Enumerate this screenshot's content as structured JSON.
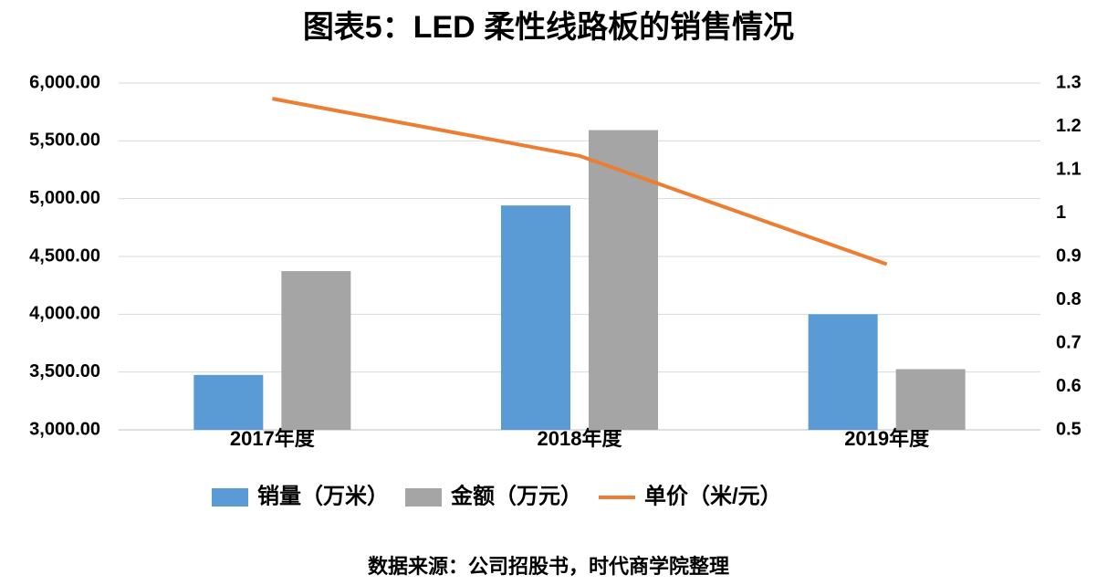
{
  "chart_data": {
    "type": "bar-line",
    "title": "图表5：LED 柔性线路板的销售情况",
    "source": "数据来源：公司招股书，时代商学院整理",
    "categories": [
      "2017年度",
      "2018年度",
      "2019年度"
    ],
    "series": [
      {
        "name": "销量（万米）",
        "type": "bar",
        "color": "#5b9bd5",
        "values": [
          3475,
          4941,
          4000
        ]
      },
      {
        "name": "金额（万元）",
        "type": "bar",
        "color": "#a5a5a5",
        "values": [
          4373,
          5593,
          3525
        ]
      },
      {
        "name": "单价（米/元）",
        "type": "line",
        "axis": "y2",
        "color": "#ed7d31",
        "values": [
          1.264,
          1.132,
          0.882
        ]
      }
    ],
    "ylim": [
      3000,
      6000
    ],
    "yticks": [
      {
        "value": 3000,
        "label": "3,000.00"
      },
      {
        "value": 3500,
        "label": "3,500.00"
      },
      {
        "value": 4000,
        "label": "4,000.00"
      },
      {
        "value": 4500,
        "label": "4,500.00"
      },
      {
        "value": 5000,
        "label": "5,000.00"
      },
      {
        "value": 5500,
        "label": "5,500.00"
      },
      {
        "value": 6000,
        "label": "6,000.00"
      }
    ],
    "y2lim": [
      0.5,
      1.3
    ],
    "y2ticks": [
      0.5,
      0.6,
      0.7,
      0.8,
      0.9,
      1,
      1.1,
      1.2,
      1.3
    ],
    "grid": true,
    "legend": "bottom"
  }
}
